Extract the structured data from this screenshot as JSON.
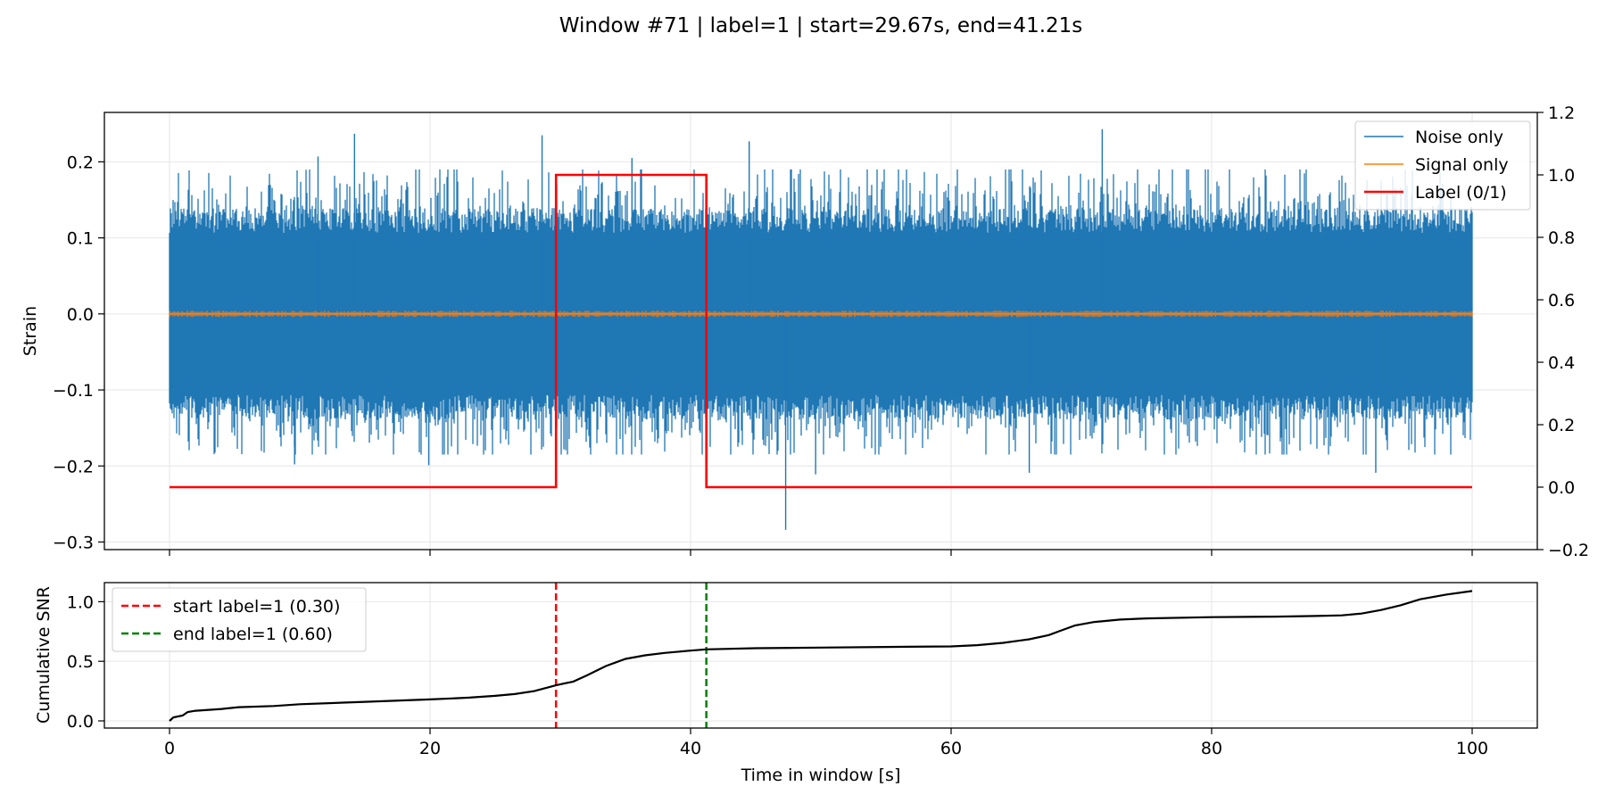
{
  "title": "Window #71 | label=1 | start=29.67s, end=41.21s",
  "colors": {
    "noise": "#1f77b4",
    "signal": "#ff7f0e",
    "label": "#ff0000",
    "cum_snr": "#000000",
    "start_line": "#ff0000",
    "end_line": "#008000",
    "grid": "#e6e6e6"
  },
  "chart_data": [
    {
      "type": "line",
      "panel": "top",
      "ylabel": "Strain",
      "xlim": [
        -5,
        105
      ],
      "ylim": [
        -0.31,
        0.265
      ],
      "y_ticks": [
        -0.3,
        -0.2,
        -0.1,
        0.0,
        0.1,
        0.2
      ],
      "y_tick_labels": [
        "−0.3",
        "−0.2",
        "−0.1",
        "0.0",
        "0.1",
        "0.2"
      ],
      "y2lim": [
        -0.2,
        1.2
      ],
      "y2_ticks": [
        -0.2,
        0.0,
        0.2,
        0.4,
        0.6,
        0.8,
        1.0,
        1.2
      ],
      "y2_tick_labels": [
        "−0.2",
        "0.0",
        "0.2",
        "0.4",
        "0.6",
        "0.8",
        "1.0",
        "1.2"
      ],
      "x_ticks": [
        0,
        20,
        40,
        60,
        80,
        100
      ],
      "grid": true,
      "legend": {
        "placement": "upper right",
        "entries": [
          "Noise only",
          "Signal only",
          "Label (0/1)"
        ]
      },
      "series": [
        {
          "name": "Noise only",
          "kind": "noise",
          "x_range": [
            0,
            100
          ],
          "typical_amplitude": 0.13,
          "peaks": [
            {
              "x": 14.2,
              "y": 0.237
            },
            {
              "x": 28.6,
              "y": 0.235
            },
            {
              "x": 71.6,
              "y": 0.243
            },
            {
              "x": 11.4,
              "y": 0.207
            },
            {
              "x": 35.5,
              "y": 0.205
            },
            {
              "x": 44.5,
              "y": 0.227
            },
            {
              "x": 47.3,
              "y": -0.284
            },
            {
              "x": 9.6,
              "y": -0.198
            },
            {
              "x": 19.9,
              "y": -0.199
            },
            {
              "x": 49.6,
              "y": -0.211
            },
            {
              "x": 66.0,
              "y": -0.209
            },
            {
              "x": 92.6,
              "y": -0.209
            }
          ]
        },
        {
          "name": "Signal only",
          "kind": "signal",
          "x_range": [
            0,
            100
          ],
          "typical_amplitude": 0.003
        },
        {
          "name": "Label (0/1)",
          "kind": "step",
          "axis": "right",
          "x": [
            0,
            29.67,
            29.67,
            41.21,
            41.21,
            100
          ],
          "y": [
            0,
            0,
            1,
            1,
            0,
            0
          ]
        }
      ]
    },
    {
      "type": "line",
      "panel": "bottom",
      "ylabel": "Cumulative SNR",
      "xlabel": "Time in window [s]",
      "xlim": [
        -5,
        105
      ],
      "ylim": [
        -0.06,
        1.16
      ],
      "y_ticks": [
        0.0,
        0.5,
        1.0
      ],
      "y_tick_labels": [
        "0.0",
        "0.5",
        "1.0"
      ],
      "x_ticks": [
        0,
        20,
        40,
        60,
        80,
        100
      ],
      "x_tick_labels": [
        "0",
        "20",
        "40",
        "60",
        "80",
        "100"
      ],
      "grid": true,
      "legend": {
        "placement": "upper left",
        "entries": [
          "start label=1 (0.30)",
          "end label=1 (0.60)"
        ]
      },
      "series": [
        {
          "name": "Cumulative SNR",
          "x": [
            0,
            0.3,
            1.0,
            1.4,
            2,
            4,
            5.3,
            8,
            10,
            15,
            20,
            23,
            25,
            26.5,
            28,
            29.7,
            31,
            32,
            33.5,
            35,
            36.5,
            38,
            40,
            41.2,
            45,
            50,
            55,
            60,
            62,
            64,
            66,
            67.5,
            68.5,
            69.5,
            71,
            73,
            75,
            80,
            85,
            88,
            90,
            91.5,
            93,
            94.5,
            96,
            98,
            100
          ],
          "y": [
            0.0,
            0.03,
            0.045,
            0.075,
            0.085,
            0.1,
            0.115,
            0.125,
            0.14,
            0.16,
            0.18,
            0.195,
            0.21,
            0.225,
            0.25,
            0.3,
            0.33,
            0.38,
            0.46,
            0.52,
            0.55,
            0.57,
            0.59,
            0.6,
            0.61,
            0.615,
            0.62,
            0.625,
            0.635,
            0.655,
            0.685,
            0.72,
            0.76,
            0.8,
            0.83,
            0.85,
            0.86,
            0.87,
            0.875,
            0.88,
            0.885,
            0.9,
            0.93,
            0.97,
            1.02,
            1.06,
            1.09
          ]
        },
        {
          "name": "start label=1 (0.30)",
          "kind": "vline",
          "x": 29.67
        },
        {
          "name": "end label=1 (0.60)",
          "kind": "vline",
          "x": 41.21
        }
      ]
    }
  ]
}
